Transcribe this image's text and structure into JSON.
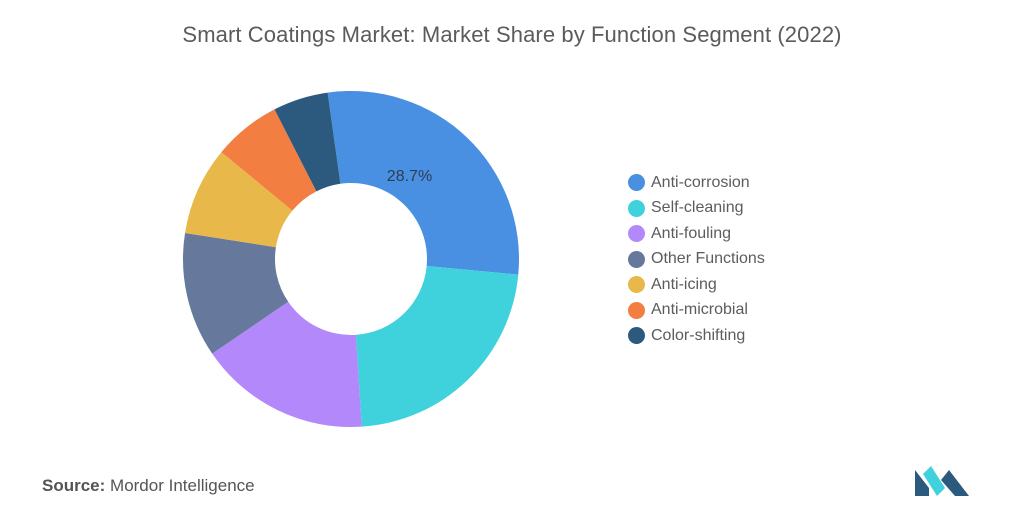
{
  "chart_data": {
    "type": "pie",
    "title": "Smart Coatings Market: Market Share by Function Segment (2022)",
    "donut": true,
    "categories": [
      "Anti-corrosion",
      "Self-cleaning",
      "Anti-fouling",
      "Other Functions",
      "Anti-icing",
      "Anti-microbial",
      "Color-shifting"
    ],
    "values": [
      28.7,
      22.5,
      16.5,
      12.0,
      8.5,
      6.5,
      5.3
    ],
    "colors": [
      "#4a90e2",
      "#3fd1dc",
      "#b388fb",
      "#66799c",
      "#e8b94a",
      "#f27e42",
      "#2c5a7f"
    ],
    "data_labels": [
      "28.7%",
      "",
      "",
      "",
      "",
      "",
      ""
    ],
    "legend_position": "right"
  },
  "source": {
    "label": "Source:",
    "value": "Mordor Intelligence"
  },
  "logo": {
    "icon": "mordor-intelligence-logo-icon",
    "colors": [
      "#2c5a7f",
      "#3fd1dc"
    ]
  }
}
